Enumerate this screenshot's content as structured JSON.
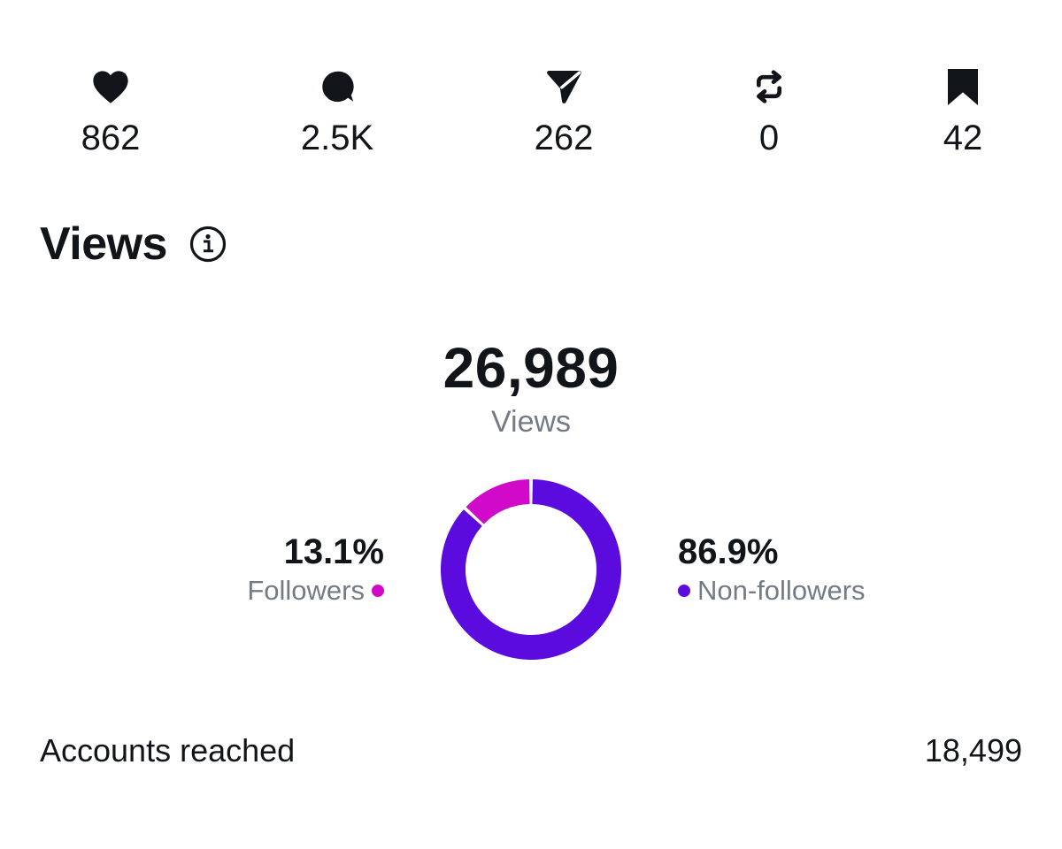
{
  "stats": {
    "likes": "862",
    "comments": "2.5K",
    "shares": "262",
    "reposts": "0",
    "saves": "42"
  },
  "icons": {
    "likes": "heart-icon",
    "comments": "comment-bubble-icon",
    "shares": "send-paper-plane-icon",
    "reposts": "repost-icon",
    "saves": "bookmark-icon",
    "info": "info-icon"
  },
  "views": {
    "title": "Views",
    "total": "26,989",
    "total_label": "Views"
  },
  "chart_data": {
    "type": "pie",
    "categories": [
      "Followers",
      "Non-followers"
    ],
    "values": [
      13.1,
      86.9
    ],
    "value_labels": [
      "13.1%",
      "86.9%"
    ],
    "colors": [
      "#d10ac9",
      "#5b0bde"
    ],
    "legend": "left-right"
  },
  "reach": {
    "label": "Accounts reached",
    "value": "18,499"
  }
}
